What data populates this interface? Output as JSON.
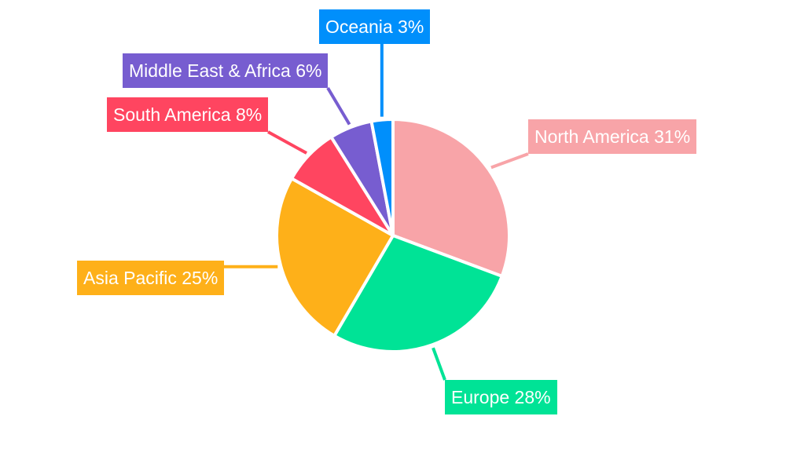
{
  "chart_data": {
    "type": "pie",
    "title": "",
    "categories": [
      "North America",
      "Europe",
      "Asia Pacific",
      "South America",
      "Middle East & Africa",
      "Oceania"
    ],
    "values": [
      31,
      28,
      25,
      8,
      6,
      3
    ],
    "unit": "%",
    "colors": [
      "#f8a4a8",
      "#00e396",
      "#feb019",
      "#ff4560",
      "#775dd0",
      "#008ffb"
    ],
    "labels": [
      "North America 31%",
      "Europe 28%",
      "Asia Pacific 25%",
      "South America 8%",
      "Middle East & Africa 6%",
      "Oceania 3%"
    ],
    "start_angle": "12 o'clock, clockwise",
    "legend": "none (callout labels)"
  }
}
